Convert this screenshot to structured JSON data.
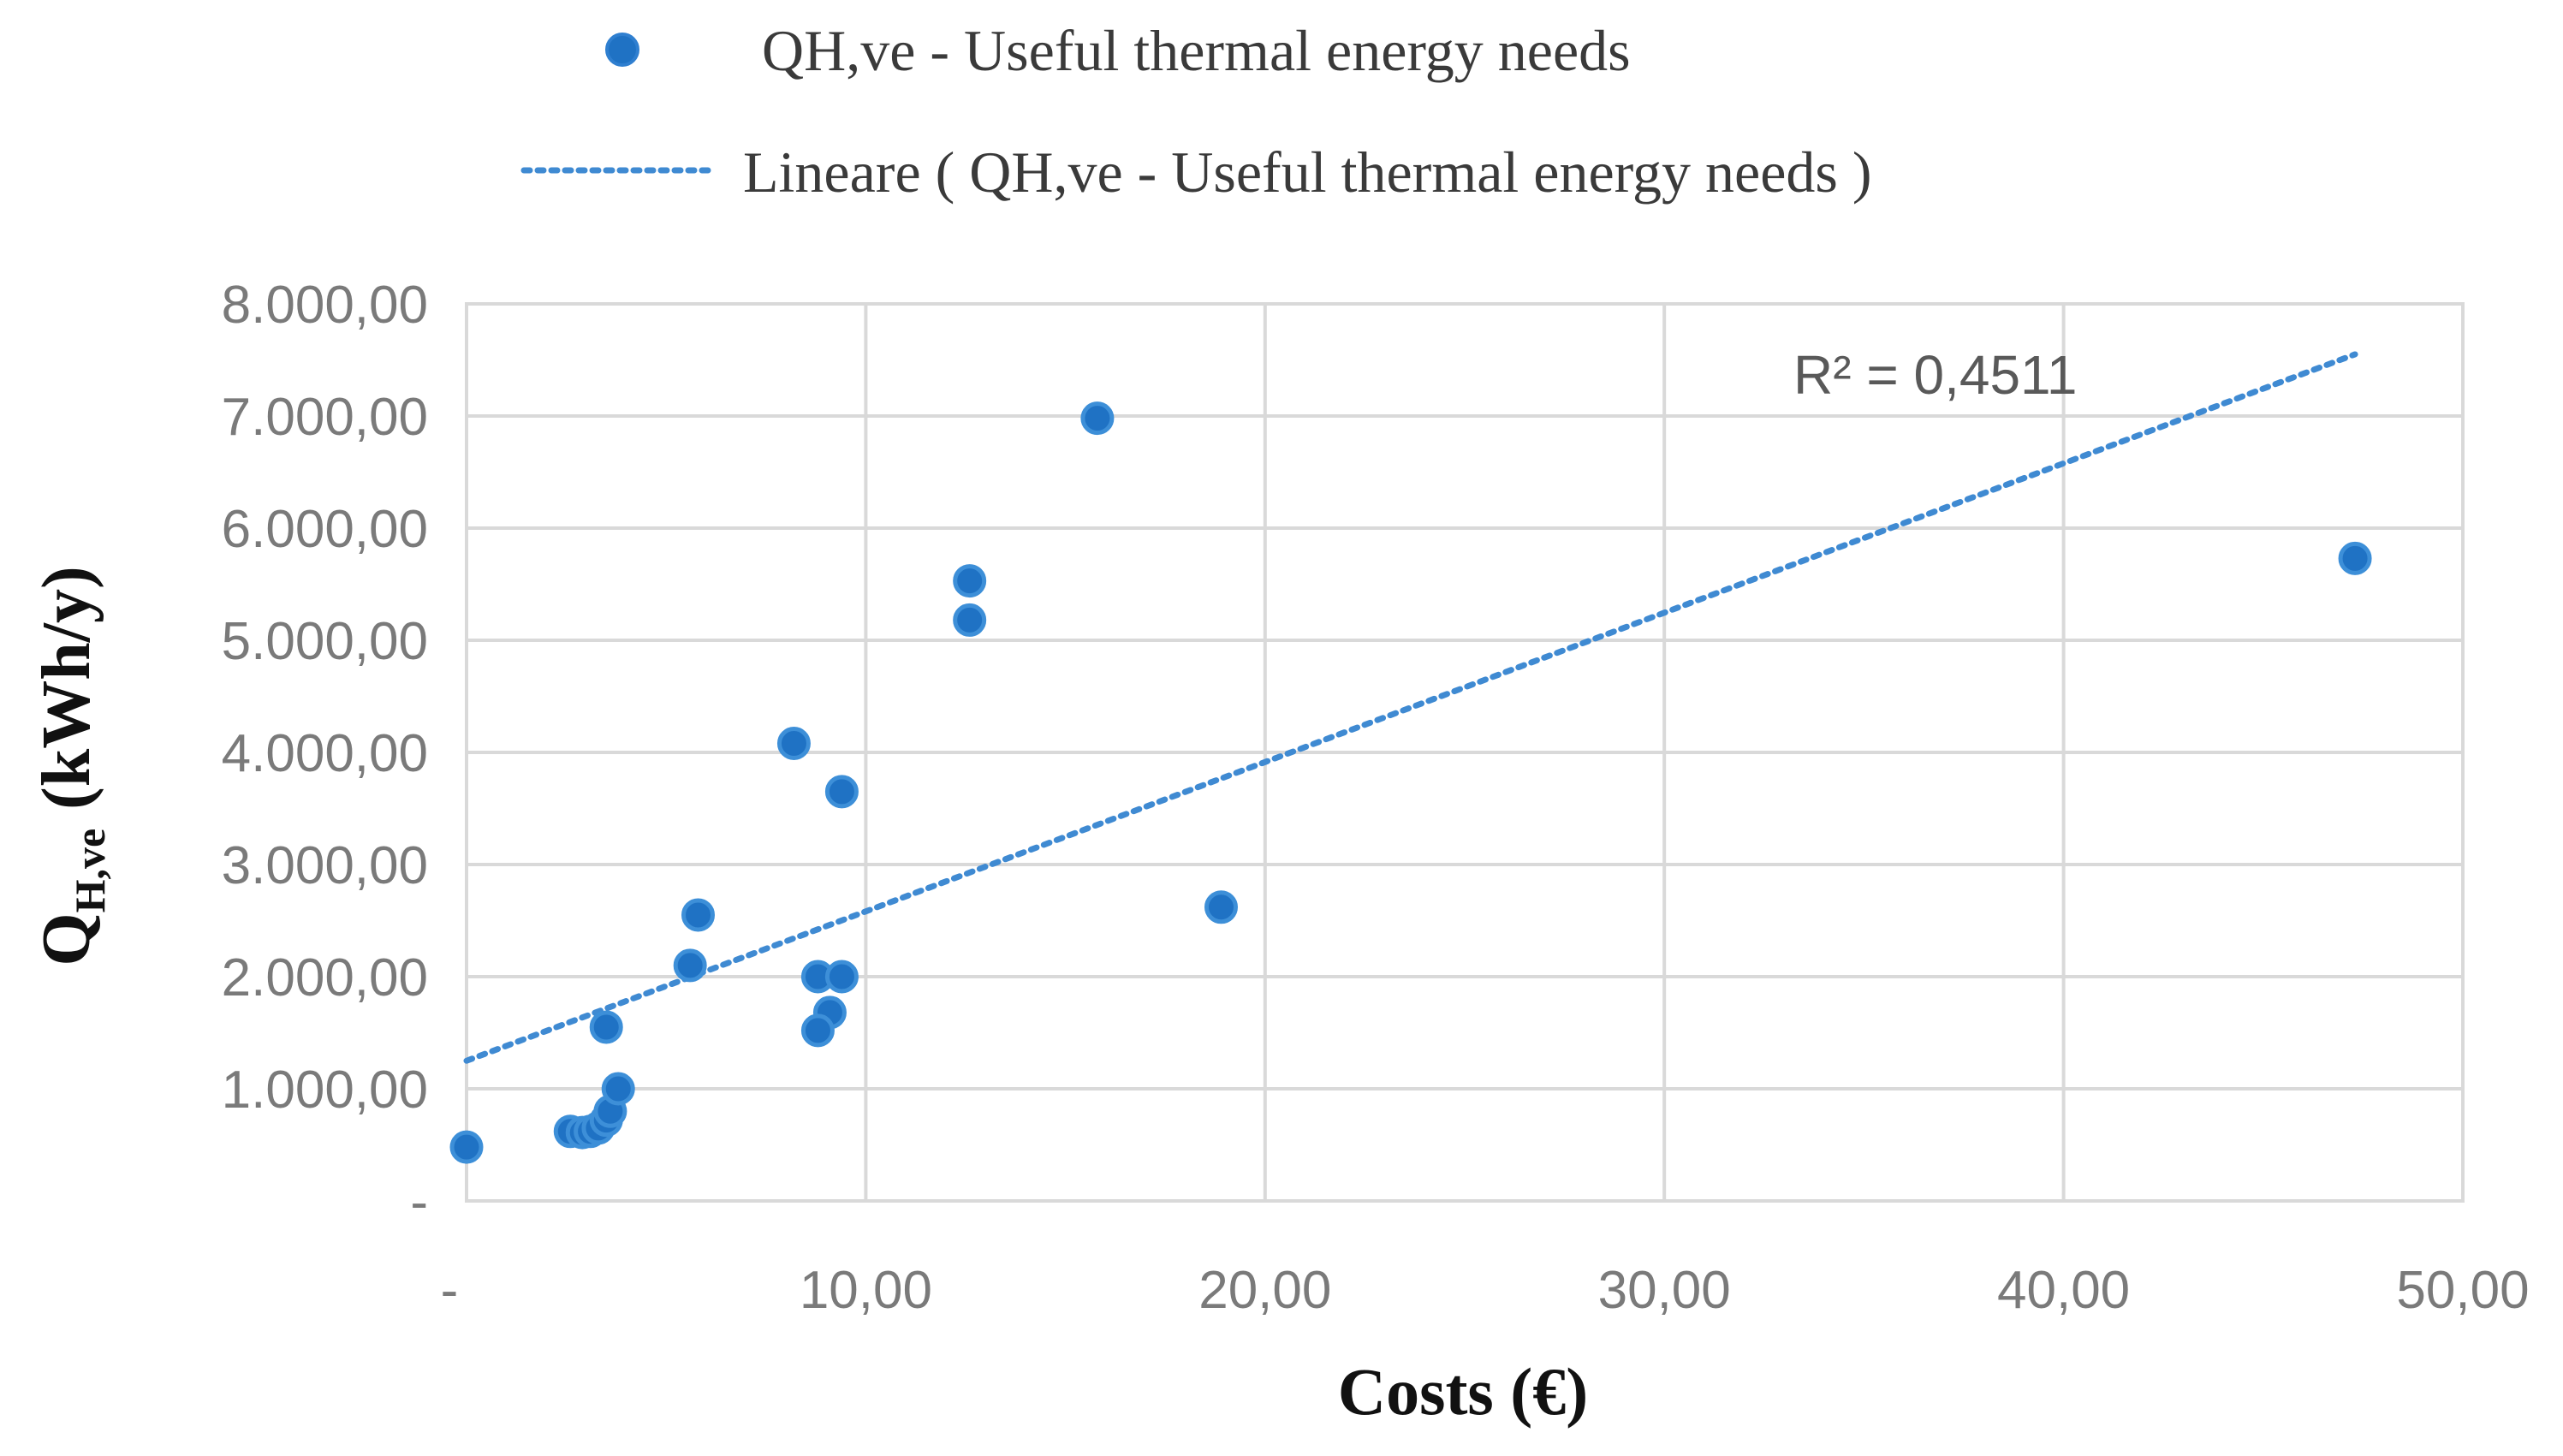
{
  "chart_data": {
    "type": "scatter",
    "title": "",
    "xlabel": "Costs (€)",
    "ylabel_main": "Q",
    "ylabel_sub": "H,ve",
    "ylabel_unit": "(kWh/y)",
    "xlim": [
      0,
      50
    ],
    "ylim": [
      0,
      8000
    ],
    "x_ticks": [
      0,
      10,
      20,
      30,
      40,
      50
    ],
    "x_tick_labels": [
      "-",
      "10,00",
      "20,00",
      "30,00",
      "40,00",
      "50,00"
    ],
    "y_ticks": [
      0,
      1000,
      2000,
      3000,
      4000,
      5000,
      6000,
      7000,
      8000
    ],
    "y_tick_labels": [
      "-",
      "1.000,00",
      "2.000,00",
      "3.000,00",
      "4.000,00",
      "5.000,00",
      "6.000,00",
      "7.000,00",
      "8.000,00"
    ],
    "grid": true,
    "legend_position": "top",
    "series": [
      {
        "name": "QH,ve - Useful thermal energy needs",
        "color": "#1f72c4",
        "marker": "circle",
        "points": [
          {
            "x": 0.0,
            "y": 480
          },
          {
            "x": 2.6,
            "y": 620
          },
          {
            "x": 2.9,
            "y": 610
          },
          {
            "x": 3.1,
            "y": 620
          },
          {
            "x": 3.3,
            "y": 650
          },
          {
            "x": 3.5,
            "y": 720
          },
          {
            "x": 3.6,
            "y": 800
          },
          {
            "x": 3.8,
            "y": 1000
          },
          {
            "x": 3.5,
            "y": 1550
          },
          {
            "x": 5.6,
            "y": 2100
          },
          {
            "x": 5.8,
            "y": 2550
          },
          {
            "x": 8.2,
            "y": 4080
          },
          {
            "x": 9.4,
            "y": 3650
          },
          {
            "x": 8.8,
            "y": 2000
          },
          {
            "x": 9.4,
            "y": 2000
          },
          {
            "x": 9.1,
            "y": 1680
          },
          {
            "x": 8.8,
            "y": 1520
          },
          {
            "x": 12.6,
            "y": 5530
          },
          {
            "x": 12.6,
            "y": 5180
          },
          {
            "x": 15.8,
            "y": 6980
          },
          {
            "x": 18.9,
            "y": 2620
          },
          {
            "x": 47.3,
            "y": 5730
          }
        ]
      }
    ],
    "trendline": {
      "name": "Lineare ( QH,ve - Useful thermal energy needs )",
      "type": "linear",
      "style": "dotted",
      "color": "#3f8ad2",
      "x_start": 0,
      "x_end": 47.3,
      "y_start": 1250,
      "y_end": 7550,
      "r2_label": "R² = 0,4511"
    }
  }
}
